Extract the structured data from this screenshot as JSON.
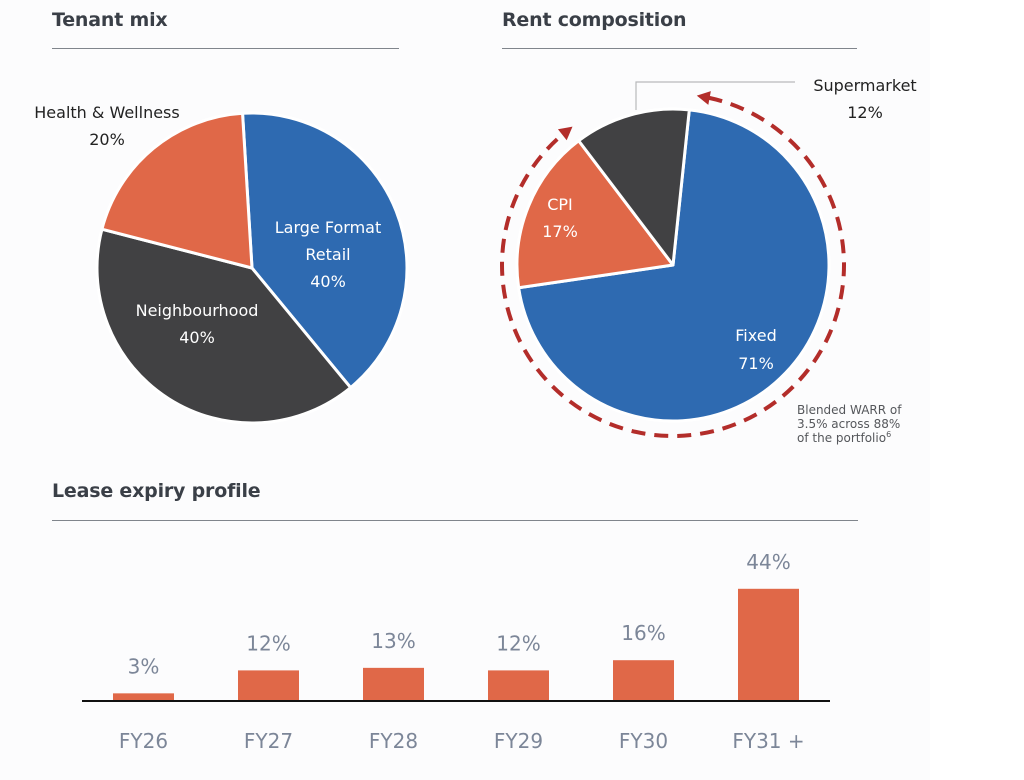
{
  "colors": {
    "blue": "#2e6ab1",
    "orange": "#e06848",
    "dark": "#414143",
    "dashed_ring": "#b32d2a",
    "bar": "#e06848",
    "label_gray": "#7c8698"
  },
  "sections": {
    "tenant_mix": "Tenant mix",
    "rent_composition": "Rent composition",
    "lease_expiry": "Lease expiry profile"
  },
  "annotation": {
    "lines": [
      "Blended WARR of",
      "3.5% across 88%",
      "of the portfolio"
    ],
    "superscript": "6"
  },
  "chart_data": [
    {
      "type": "pie",
      "title": "Tenant mix",
      "slices": [
        {
          "label": "Large Format Retail",
          "label_lines": [
            "Large Format",
            "Retail"
          ],
          "value": 40,
          "display": "40%",
          "color": "#2e6ab1"
        },
        {
          "label": "Neighbourhood",
          "label_lines": [
            "Neighbourhood"
          ],
          "value": 40,
          "display": "40%",
          "color": "#414143"
        },
        {
          "label": "Health & Wellness",
          "label_lines": [
            "Health & Wellness"
          ],
          "value": 20,
          "display": "20%",
          "color": "#e06848"
        }
      ]
    },
    {
      "type": "pie",
      "title": "Rent composition",
      "slices": [
        {
          "label": "Fixed",
          "label_lines": [
            "Fixed"
          ],
          "value": 71,
          "display": "71%",
          "color": "#2e6ab1"
        },
        {
          "label": "CPI",
          "label_lines": [
            "CPI"
          ],
          "value": 17,
          "display": "17%",
          "color": "#e06848"
        },
        {
          "label": "Supermarket",
          "label_lines": [
            "Supermarket"
          ],
          "value": 12,
          "display": "12%",
          "color": "#414143"
        }
      ]
    },
    {
      "type": "bar",
      "title": "Lease expiry profile",
      "categories": [
        "FY26",
        "FY27",
        "FY28",
        "FY29",
        "FY30",
        "FY31 +"
      ],
      "values": [
        3,
        12,
        13,
        12,
        16,
        44
      ],
      "labels": [
        "3%",
        "12%",
        "13%",
        "12%",
        "16%",
        "44%"
      ],
      "xlabel": "",
      "ylabel": "",
      "ylim": [
        0,
        50
      ]
    }
  ]
}
